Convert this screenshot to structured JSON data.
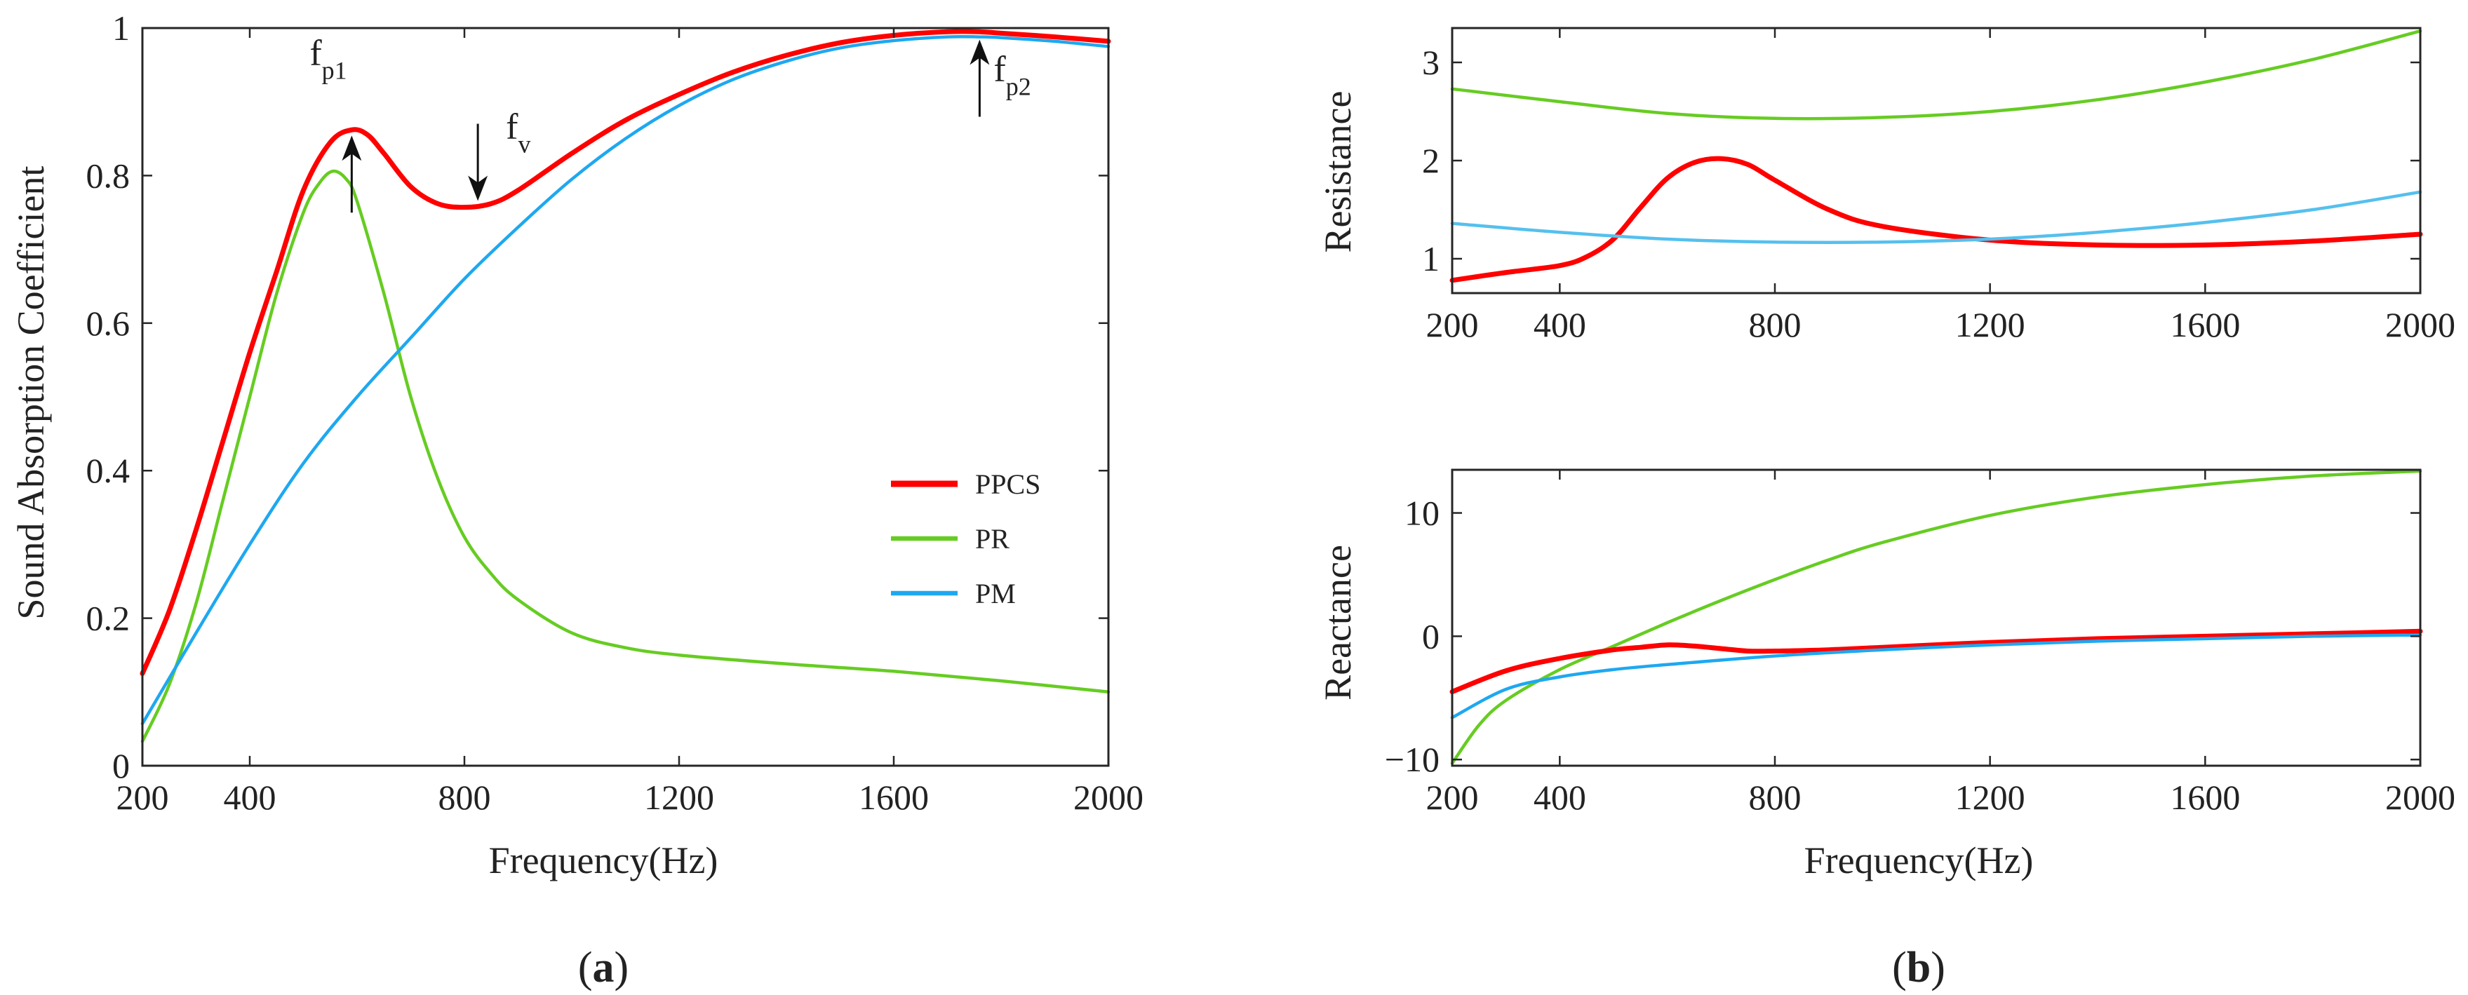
{
  "colors": {
    "PPCS": "#ff0000",
    "PR": "#66cc22",
    "PM": "#1ea8f0",
    "PM_b": "#55c0ee"
  },
  "chart_data": [
    {
      "id": "a",
      "panel_label": "(a)",
      "panel_letter": "a",
      "type": "line",
      "title": "",
      "xlabel": "Frequency(Hz)",
      "ylabel": "Sound Absorption Coefficient",
      "xlim": [
        200,
        2000
      ],
      "ylim": [
        0,
        1
      ],
      "xticks": [
        200,
        400,
        800,
        1200,
        1600,
        2000
      ],
      "yticks": [
        0,
        0.2,
        0.4,
        0.6,
        0.8,
        1
      ],
      "ytick_labels": [
        "0",
        "0.2",
        "0.4",
        "0.6",
        "0.8",
        "1"
      ],
      "legend": {
        "position": "right",
        "entries": [
          "PPCS",
          "PR",
          "PM"
        ]
      },
      "annotations": [
        {
          "label": "f",
          "sub": "p1",
          "x": 590,
          "y": 0.86,
          "arrow": "up"
        },
        {
          "label": "f",
          "sub": "v",
          "x": 825,
          "y": 0.76,
          "arrow": "down"
        },
        {
          "label": "f",
          "sub": "p2",
          "x": 1760,
          "y": 0.99,
          "arrow": "up"
        }
      ],
      "series": [
        {
          "name": "PPCS",
          "color": "#ff0000",
          "width": 7,
          "x": [
            200,
            250,
            300,
            350,
            400,
            450,
            500,
            550,
            590,
            620,
            650,
            700,
            750,
            800,
            850,
            900,
            1000,
            1100,
            1200,
            1300,
            1400,
            1500,
            1600,
            1700,
            1760,
            1800,
            1900,
            2000
          ],
          "y": [
            0.125,
            0.21,
            0.32,
            0.44,
            0.56,
            0.67,
            0.78,
            0.845,
            0.862,
            0.855,
            0.83,
            0.785,
            0.762,
            0.757,
            0.762,
            0.78,
            0.83,
            0.875,
            0.91,
            0.94,
            0.963,
            0.98,
            0.99,
            0.995,
            0.995,
            0.993,
            0.988,
            0.982
          ]
        },
        {
          "name": "PR",
          "color": "#66cc22",
          "width": 4.5,
          "x": [
            200,
            250,
            300,
            350,
            400,
            450,
            500,
            530,
            555,
            580,
            600,
            650,
            700,
            750,
            800,
            850,
            900,
            1000,
            1100,
            1200,
            1400,
            1600,
            1800,
            2000
          ],
          "y": [
            0.033,
            0.11,
            0.22,
            0.36,
            0.5,
            0.64,
            0.75,
            0.79,
            0.806,
            0.795,
            0.765,
            0.64,
            0.5,
            0.39,
            0.31,
            0.26,
            0.225,
            0.18,
            0.16,
            0.15,
            0.138,
            0.128,
            0.115,
            0.1
          ]
        },
        {
          "name": "PM",
          "color": "#1ea8f0",
          "width": 4.5,
          "x": [
            200,
            300,
            400,
            500,
            600,
            700,
            800,
            900,
            1000,
            1100,
            1200,
            1300,
            1400,
            1500,
            1600,
            1700,
            1760,
            1800,
            1900,
            2000
          ],
          "y": [
            0.057,
            0.18,
            0.3,
            0.41,
            0.5,
            0.58,
            0.66,
            0.73,
            0.795,
            0.85,
            0.895,
            0.93,
            0.955,
            0.973,
            0.983,
            0.988,
            0.988,
            0.987,
            0.982,
            0.975
          ]
        }
      ]
    },
    {
      "id": "b_top",
      "panel_label": "(b)",
      "panel_letter": "b",
      "type": "line",
      "xlabel": "",
      "ylabel": "Resistance",
      "xlim": [
        200,
        2000
      ],
      "ylim": [
        0.65,
        3.35
      ],
      "xticks": [
        200,
        400,
        800,
        1200,
        1600,
        2000
      ],
      "yticks": [
        1,
        2,
        3
      ],
      "ytick_labels": [
        "1",
        "2",
        "3"
      ],
      "series": [
        {
          "name": "PR",
          "color": "#66cc22",
          "width": 4.5,
          "x": [
            200,
            400,
            600,
            800,
            1000,
            1200,
            1400,
            1600,
            1800,
            2000
          ],
          "y": [
            2.73,
            2.6,
            2.48,
            2.43,
            2.44,
            2.5,
            2.62,
            2.8,
            3.03,
            3.32
          ]
        },
        {
          "name": "PPCS",
          "color": "#ff0000",
          "width": 7,
          "x": [
            200,
            300,
            400,
            450,
            500,
            550,
            600,
            650,
            700,
            750,
            800,
            900,
            1000,
            1200,
            1400,
            1600,
            1800,
            2000
          ],
          "y": [
            0.78,
            0.86,
            0.93,
            1.02,
            1.2,
            1.52,
            1.82,
            1.98,
            2.02,
            1.96,
            1.8,
            1.5,
            1.33,
            1.19,
            1.14,
            1.14,
            1.18,
            1.25
          ]
        },
        {
          "name": "PM",
          "color": "#55c0ee",
          "width": 4.5,
          "x": [
            200,
            400,
            600,
            800,
            1000,
            1200,
            1400,
            1600,
            1800,
            2000
          ],
          "y": [
            1.36,
            1.27,
            1.2,
            1.17,
            1.17,
            1.2,
            1.27,
            1.37,
            1.5,
            1.68
          ]
        }
      ]
    },
    {
      "id": "b_bottom",
      "type": "line",
      "xlabel": "Frequency(Hz)",
      "ylabel": "Reactance",
      "xlim": [
        200,
        2000
      ],
      "ylim": [
        -10.5,
        13.5
      ],
      "xticks": [
        200,
        400,
        800,
        1200,
        1600,
        2000
      ],
      "yticks": [
        -10,
        0,
        10
      ],
      "ytick_labels": [
        "−10",
        "0",
        "10"
      ],
      "series": [
        {
          "name": "PR",
          "color": "#66cc22",
          "width": 4.5,
          "x": [
            200,
            250,
            300,
            400,
            500,
            600,
            700,
            800,
            900,
            1000,
            1200,
            1400,
            1600,
            1800,
            2000
          ],
          "y": [
            -10.3,
            -7.2,
            -5.2,
            -2.7,
            -0.8,
            1.1,
            2.9,
            4.6,
            6.2,
            7.6,
            9.8,
            11.3,
            12.3,
            13.0,
            13.4
          ]
        },
        {
          "name": "PPCS",
          "color": "#ff0000",
          "width": 7,
          "x": [
            200,
            300,
            400,
            500,
            550,
            600,
            650,
            700,
            750,
            800,
            900,
            1000,
            1200,
            1400,
            1600,
            1800,
            2000
          ],
          "y": [
            -4.5,
            -2.8,
            -1.8,
            -1.1,
            -0.9,
            -0.7,
            -0.8,
            -1.0,
            -1.2,
            -1.2,
            -1.1,
            -0.9,
            -0.5,
            -0.2,
            0.0,
            0.2,
            0.4
          ]
        },
        {
          "name": "PM",
          "color": "#1ea8f0",
          "width": 4.5,
          "x": [
            200,
            300,
            400,
            500,
            600,
            800,
            1000,
            1200,
            1400,
            1600,
            1800,
            2000
          ],
          "y": [
            -6.6,
            -4.3,
            -3.3,
            -2.7,
            -2.3,
            -1.6,
            -1.1,
            -0.7,
            -0.4,
            -0.2,
            0.0,
            0.1
          ]
        }
      ]
    }
  ]
}
